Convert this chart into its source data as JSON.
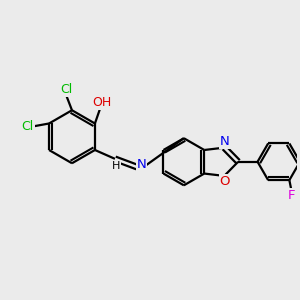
{
  "background_color": "#ebebeb",
  "bond_color": "#000000",
  "atom_colors": {
    "Cl": "#00bb00",
    "OH": "#dd0000",
    "N": "#0000ee",
    "O": "#dd0000",
    "F": "#dd00dd",
    "H": "#000000"
  },
  "figsize": [
    3.0,
    3.0
  ],
  "dpi": 100
}
